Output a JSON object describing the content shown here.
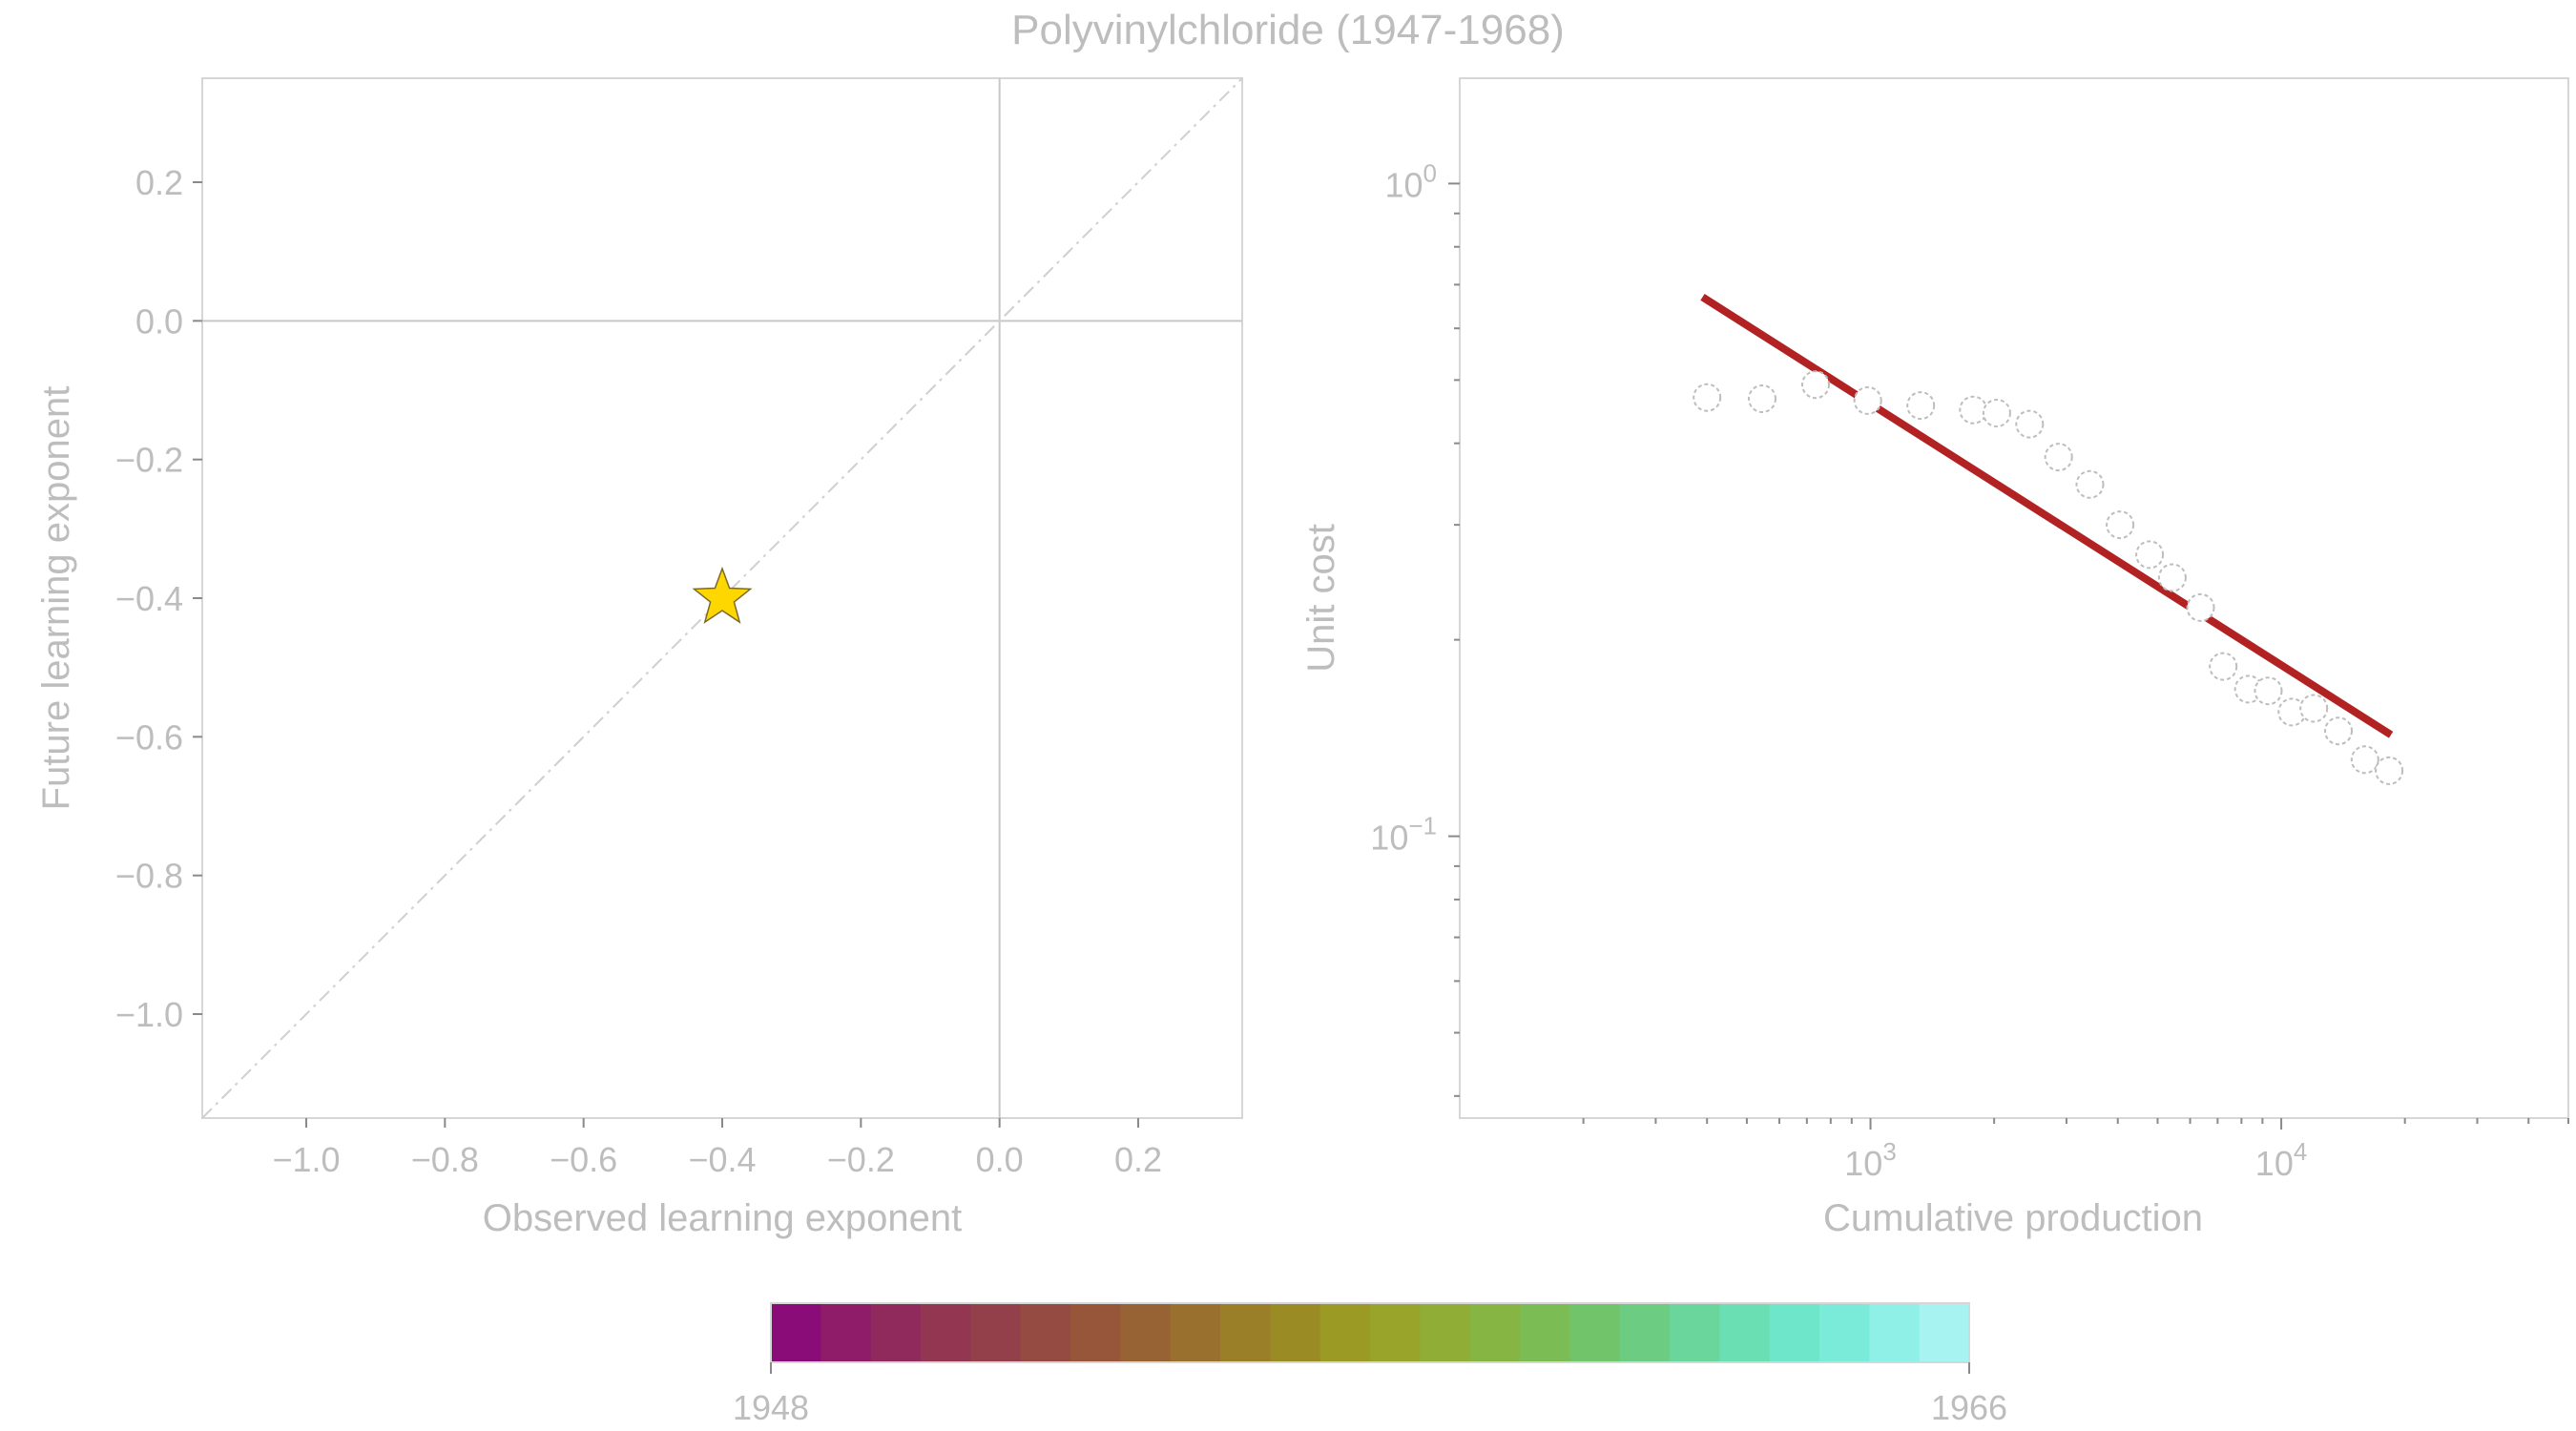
{
  "title": "Polyvinylchloride (1947-1968)",
  "chart_data": [
    {
      "type": "scatter",
      "xlabel": "Observed learning exponent",
      "ylabel": "Future learning exponent",
      "xlim": [
        -1.15,
        0.35
      ],
      "ylim": [
        -1.15,
        0.35
      ],
      "xticks": [
        -1.0,
        -0.8,
        -0.6,
        -0.4,
        -0.2,
        0.0,
        0.2
      ],
      "yticks": [
        -1.0,
        -0.8,
        -0.6,
        -0.4,
        -0.2,
        0.0,
        0.2
      ],
      "xtick_labels": [
        "−1.0",
        "−0.8",
        "−0.6",
        "−0.4",
        "−0.2",
        "0.0",
        "0.2"
      ],
      "ytick_labels": [
        "−1.0",
        "−0.8",
        "−0.6",
        "−0.4",
        "−0.2",
        "0.0",
        "0.2"
      ],
      "reference_lines": [
        "x = 0",
        "y = 0",
        "y = x (dashed)"
      ],
      "points": [
        {
          "x": -0.4,
          "y": -0.4,
          "marker": "star",
          "color": "#FFD700"
        }
      ],
      "grid": false
    },
    {
      "type": "scatter",
      "xlabel": "Cumulative production",
      "ylabel": "Unit cost",
      "xscale": "log",
      "yscale": "log",
      "xlim": [
        100,
        50000
      ],
      "ylim": [
        0.037,
        1.45
      ],
      "xtick_labels": [
        {
          "value": 1000,
          "base": "10",
          "exp": "3"
        },
        {
          "value": 10000,
          "base": "10",
          "exp": "4"
        }
      ],
      "ytick_labels": [
        {
          "value": 1,
          "base": "10",
          "exp": "0"
        },
        {
          "value": 0.1,
          "base": "10",
          "exp": "−1"
        }
      ],
      "series": [
        {
          "marker": "open-circle",
          "x": [
            400,
            545,
            735,
            985,
            1325,
            1780,
            2030,
            2440,
            2870,
            3420,
            4050,
            4780,
            5430,
            6360,
            7220,
            8320,
            9300,
            10620,
            12000,
            13780,
            15990,
            18300
          ],
          "y": [
            0.47,
            0.468,
            0.492,
            0.465,
            0.457,
            0.45,
            0.445,
            0.428,
            0.381,
            0.346,
            0.3,
            0.27,
            0.249,
            0.224,
            0.182,
            0.168,
            0.167,
            0.155,
            0.157,
            0.145,
            0.131,
            0.126
          ]
        },
        {
          "type": "line",
          "color": "#B22222",
          "x": [
            390,
            18500
          ],
          "y": [
            0.67,
            0.143
          ]
        }
      ],
      "grid": false
    },
    {
      "type": "colorbar",
      "range": [
        1948,
        1966
      ],
      "tick_labels": [
        "1948",
        "1966"
      ],
      "colors": [
        "#8a0c78",
        "#8e1c68",
        "#902a5c",
        "#923652",
        "#94404a",
        "#964b42",
        "#97563a",
        "#986334",
        "#9a702e",
        "#9b7e28",
        "#9a8b25",
        "#9a9a25",
        "#98a52a",
        "#90ad35",
        "#86b543",
        "#7cbc55",
        "#72c46a",
        "#6ccd82",
        "#6ad69b",
        "#6adfb4",
        "#6ee6c9",
        "#7aebd8",
        "#8ef0e6",
        "#a6f3f2"
      ]
    }
  ]
}
